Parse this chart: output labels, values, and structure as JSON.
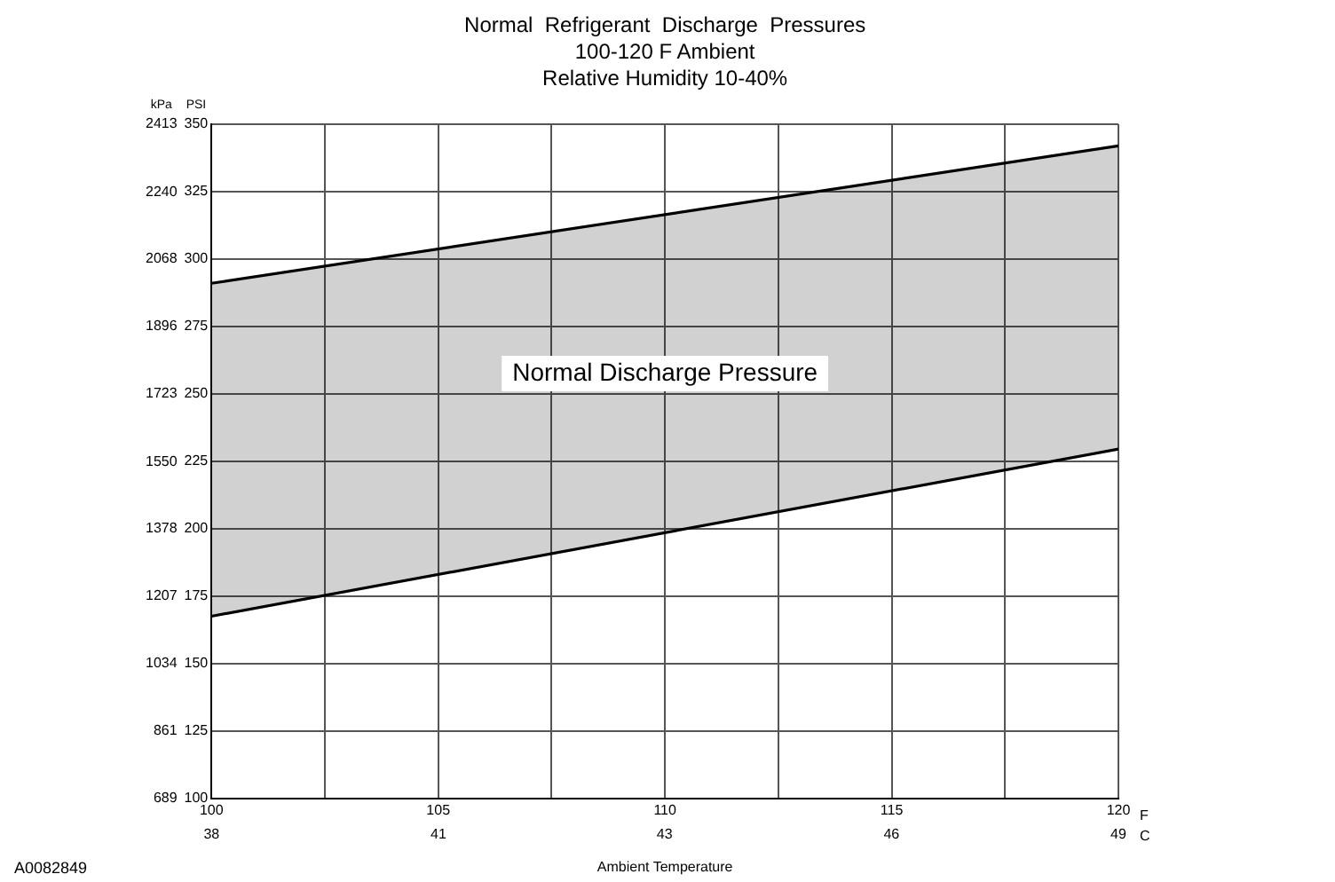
{
  "chart_data": {
    "type": "line",
    "title": "Normal  Refrigerant  Discharge  Pressures",
    "subtitle": "100-120 F Ambient\nRelative Humidity 10-40%",
    "xlabel": "Ambient Temperature",
    "ylabel": "PSI",
    "y2label": "kPa",
    "x2label": "C",
    "x": [
      100,
      120
    ],
    "series": [
      {
        "type": "area",
        "color": "#000000",
        "values": [
          291,
          342
        ]
      },
      {
        "type": "line",
        "color": "#000000",
        "values": [
          167.5,
          229.5
        ]
      }
    ],
    "xlim": [
      100,
      120
    ],
    "xticks": [
      100,
      {
        "value": 102.5,
        "label": null
      },
      105,
      {
        "value": 107.5,
        "label": null
      },
      110,
      {
        "value": 112.5,
        "label": null
      },
      115,
      {
        "value": 117.5,
        "label": null
      },
      120
    ],
    "x2lim": [
      37.78,
      48.89
    ],
    "x2ticks": [
      {
        "value": 37.78,
        "label": "38"
      },
      {
        "value": 40.56,
        "label": "41"
      },
      {
        "value": 43.33,
        "label": "43"
      },
      {
        "value": 46.11,
        "label": "46"
      },
      {
        "value": 48.89,
        "label": "49"
      }
    ],
    "ylim": [
      100,
      350
    ],
    "yticks": [
      100,
      125,
      150,
      175,
      200,
      225,
      250,
      275,
      300,
      325,
      350
    ],
    "y2lim": [
      689,
      2413
    ],
    "y2ticks": [
      689,
      861,
      1034,
      1207,
      1378,
      1550,
      1723,
      1896,
      2068,
      2240,
      2413
    ],
    "annotations": [
      "Normal Discharge Pressure",
      "F",
      "A0082849"
    ],
    "grid": true,
    "legend": false
  }
}
